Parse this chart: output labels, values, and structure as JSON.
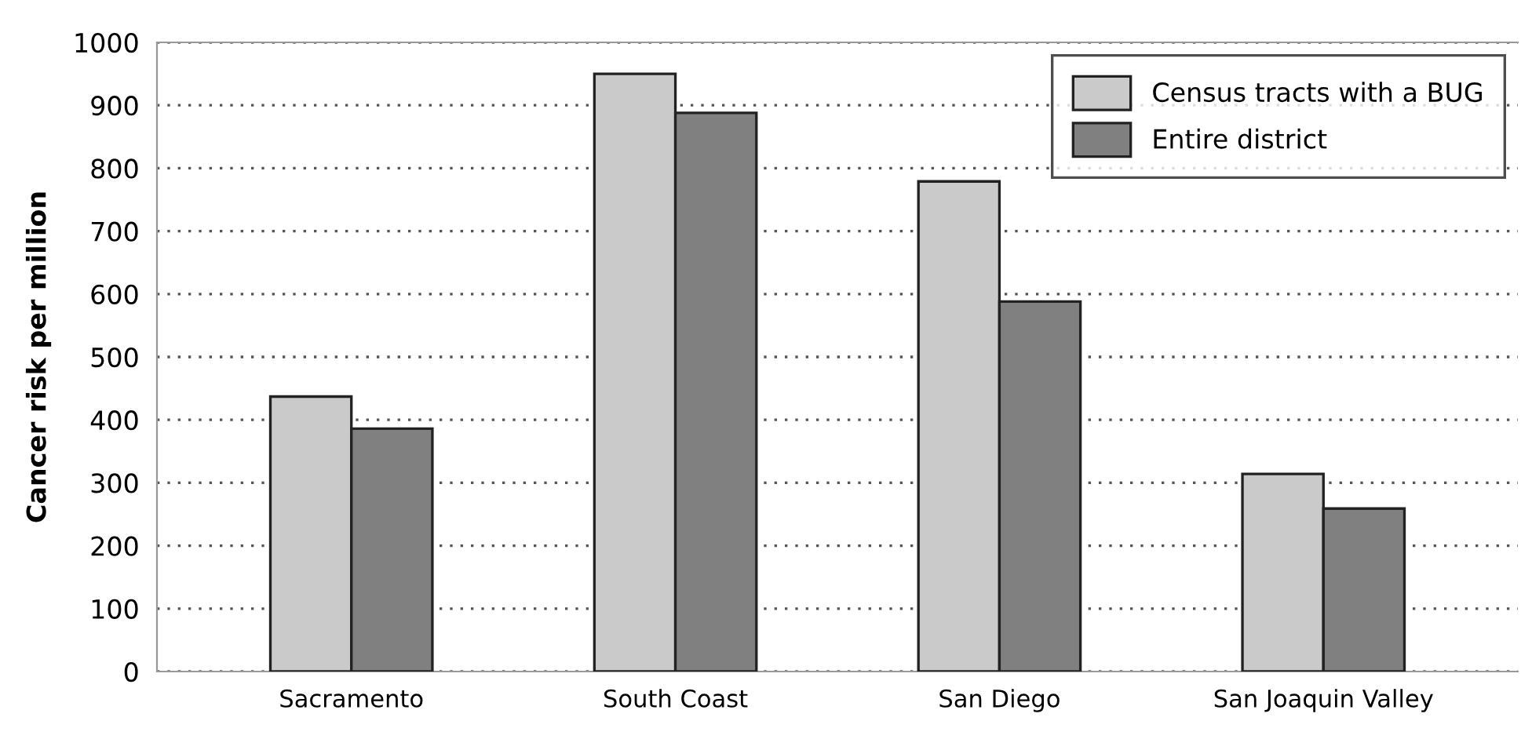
{
  "chart_data": {
    "type": "bar",
    "ylabel": "Cancer risk per million",
    "categories": [
      "Sacramento",
      "South Coast",
      "San Diego",
      "San Joaquin Valley"
    ],
    "series": [
      {
        "name": "Census tracts with a BUG",
        "color": "#cacaca",
        "values": [
          437,
          950,
          779,
          314
        ]
      },
      {
        "name": "Entire district",
        "color": "#808080",
        "values": [
          386,
          888,
          588,
          259
        ]
      }
    ],
    "ylim": [
      0,
      1000
    ],
    "yticks": [
      0,
      100,
      200,
      300,
      400,
      500,
      600,
      700,
      800,
      900,
      1000
    ],
    "grid": "y",
    "legend": "top right"
  }
}
